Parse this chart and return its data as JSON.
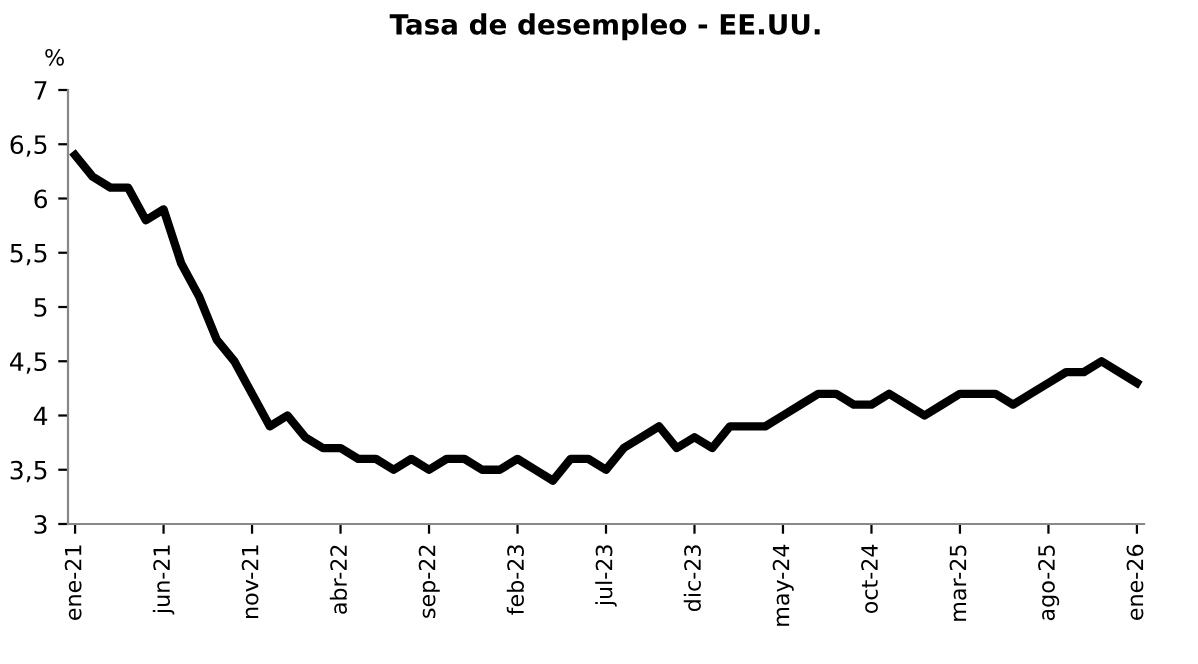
{
  "chart_data": {
    "type": "line",
    "title": "Tasa de desempleo - EE.UU.",
    "ylabel": "%",
    "categories": [
      "ene-21",
      null,
      null,
      null,
      null,
      "jun-21",
      null,
      null,
      null,
      null,
      "nov-21",
      null,
      null,
      null,
      null,
      "abr-22",
      null,
      null,
      null,
      null,
      "sep-22",
      null,
      null,
      null,
      null,
      "feb-23",
      null,
      null,
      null,
      null,
      "jul-23",
      null,
      null,
      null,
      null,
      "dic-23",
      null,
      null,
      null,
      null,
      "may-24",
      null,
      null,
      null,
      null,
      "oct-24",
      null,
      null,
      null,
      null,
      "mar-25",
      null,
      null,
      null,
      null,
      "ago-25",
      null,
      null,
      null,
      null,
      "ene-26"
    ],
    "series": [
      {
        "color": "#000000",
        "values": [
          6.4,
          6.2,
          6.1,
          6.1,
          5.8,
          5.9,
          5.4,
          5.1,
          4.7,
          4.5,
          4.2,
          3.9,
          4.0,
          3.8,
          3.7,
          3.7,
          3.6,
          3.6,
          3.5,
          3.6,
          3.5,
          3.6,
          3.6,
          3.5,
          3.5,
          3.6,
          3.5,
          3.4,
          3.6,
          3.6,
          3.5,
          3.7,
          3.8,
          3.9,
          3.7,
          3.8,
          3.7,
          3.9,
          3.9,
          3.9,
          4.0,
          4.1,
          4.2,
          4.2,
          4.1,
          4.1,
          4.2,
          4.1,
          4.0,
          4.1,
          4.2,
          4.2,
          4.2,
          4.1,
          4.2,
          4.3,
          4.4,
          4.4,
          4.5,
          4.4,
          4.3
        ]
      }
    ],
    "ylim": [
      3,
      7
    ],
    "yticks": [
      3,
      {
        "value": 3.5,
        "label": "3,5"
      },
      4,
      {
        "value": 4.5,
        "label": "4,5"
      },
      5,
      {
        "value": 5.5,
        "label": "5,5"
      },
      6,
      {
        "value": 6.5,
        "label": "6,5"
      },
      7
    ],
    "grid": false,
    "legend": false,
    "marker": "none",
    "line_style": "solid"
  }
}
